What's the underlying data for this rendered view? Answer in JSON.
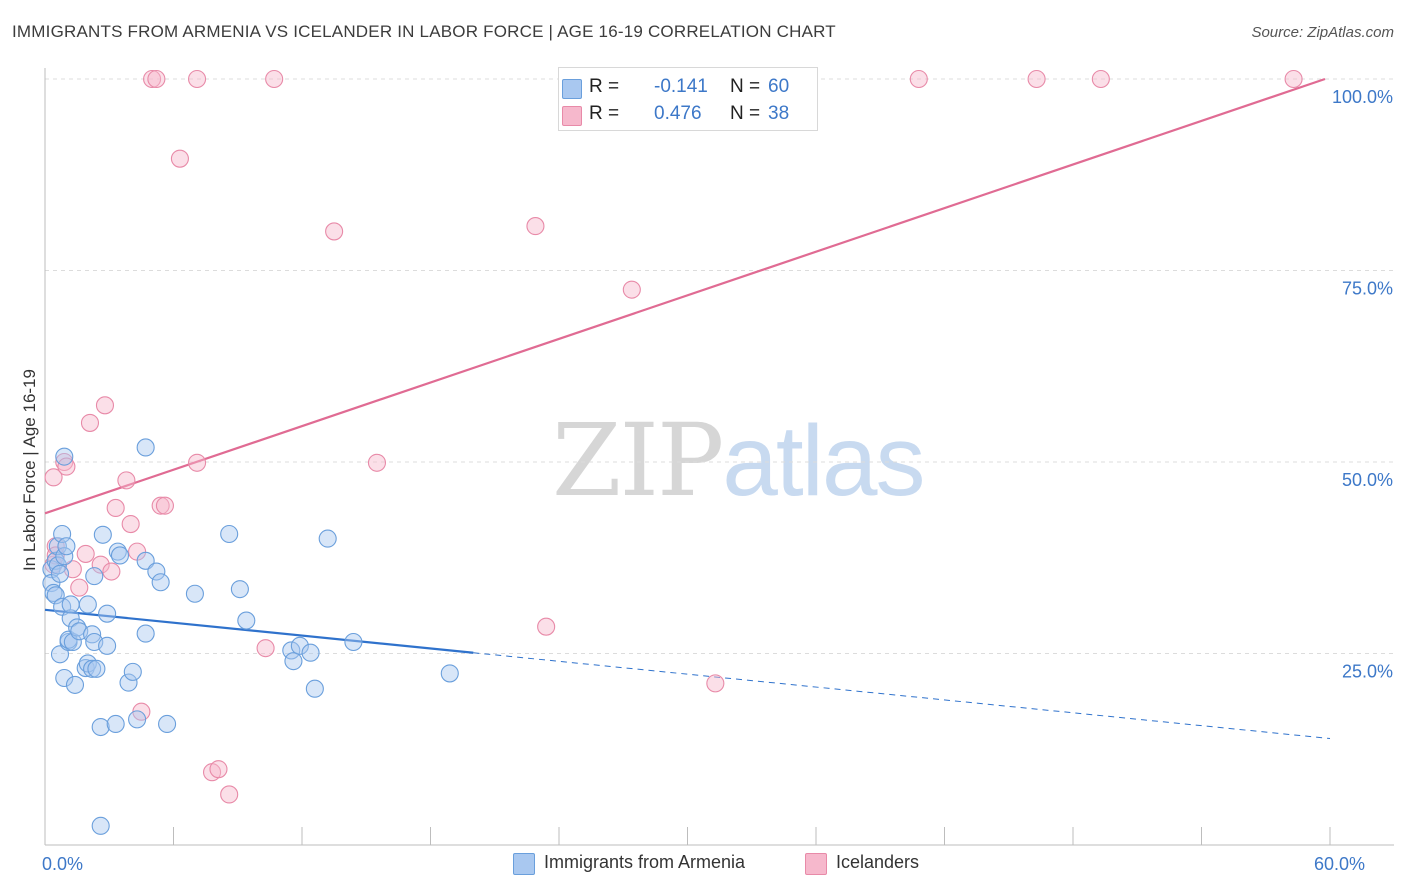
{
  "title": "IMMIGRANTS FROM ARMENIA VS ICELANDER IN LABOR FORCE | AGE 16-19 CORRELATION CHART",
  "source": "Source: ZipAtlas.com",
  "watermark": {
    "zip": "ZIP",
    "atlas": "atlas"
  },
  "colors": {
    "blue_fill": "#a9c8f0",
    "blue_stroke": "#6a9fdc",
    "blue_line": "#2f72cc",
    "pink_fill": "#f6b8cc",
    "pink_stroke": "#e88aa8",
    "pink_line": "#e06b93",
    "tick_text": "#3d78c8",
    "grid": "#dcdcdc"
  },
  "stats": [
    {
      "r_label": "R =",
      "r_value": "-0.141",
      "n_label": "N =",
      "n_value": "60",
      "color": "#a9c8f0",
      "border": "#6a9fdc"
    },
    {
      "r_label": "R =",
      "r_value": "0.476",
      "n_label": "N =",
      "n_value": "38",
      "color": "#f6b8cc",
      "border": "#e88aa8"
    }
  ],
  "legend": [
    {
      "label": "Immigrants from Armenia",
      "color": "#a9c8f0",
      "border": "#6a9fdc"
    },
    {
      "label": "Icelanders",
      "color": "#f6b8cc",
      "border": "#e88aa8"
    }
  ],
  "chart_data": {
    "type": "scatter",
    "title": "IMMIGRANTS FROM ARMENIA VS ICELANDER IN LABOR FORCE | AGE 16-19 CORRELATION CHART",
    "xlabel": "",
    "ylabel": "In Labor Force | Age 16-19",
    "xlim": [
      0,
      60
    ],
    "ylim": [
      0,
      100
    ],
    "x_tick_labels": [
      {
        "value": 0,
        "label": "0.0%"
      },
      {
        "value": 60,
        "label": "60.0%"
      }
    ],
    "y_tick_labels": [
      {
        "value": 25,
        "label": "25.0%"
      },
      {
        "value": 50,
        "label": "50.0%"
      },
      {
        "value": 75,
        "label": "75.0%"
      },
      {
        "value": 100,
        "label": "100.0%"
      }
    ],
    "x_minor_ticks": [
      6,
      12,
      18,
      24,
      30,
      36,
      42,
      48,
      54,
      60
    ],
    "series": [
      {
        "name": "Immigrants from Armenia",
        "r": -0.141,
        "n": 60,
        "trend": {
          "x0": 0,
          "y0": 30.7,
          "x1": 20,
          "y1": 25.1,
          "dash_x1": 60,
          "dash_y1": 13.9
        },
        "points": [
          [
            0.3,
            36.0
          ],
          [
            0.3,
            34.2
          ],
          [
            0.4,
            32.9
          ],
          [
            0.5,
            37.1
          ],
          [
            0.5,
            32.6
          ],
          [
            0.6,
            36.5
          ],
          [
            0.6,
            39.0
          ],
          [
            0.7,
            35.4
          ],
          [
            0.7,
            24.9
          ],
          [
            0.8,
            40.6
          ],
          [
            0.9,
            37.7
          ],
          [
            0.9,
            21.8
          ],
          [
            1.0,
            39.0
          ],
          [
            0.8,
            31.1
          ],
          [
            1.1,
            26.5
          ],
          [
            1.1,
            26.8
          ],
          [
            1.2,
            29.6
          ],
          [
            1.2,
            31.4
          ],
          [
            1.3,
            26.5
          ],
          [
            1.4,
            20.9
          ],
          [
            1.5,
            28.4
          ],
          [
            1.6,
            27.9
          ],
          [
            1.9,
            23.1
          ],
          [
            2.0,
            23.7
          ],
          [
            2.0,
            31.4
          ],
          [
            2.2,
            27.5
          ],
          [
            2.2,
            23.0
          ],
          [
            2.3,
            35.1
          ],
          [
            2.3,
            26.5
          ],
          [
            2.4,
            23.0
          ],
          [
            2.6,
            15.4
          ],
          [
            2.7,
            40.5
          ],
          [
            2.9,
            30.2
          ],
          [
            2.9,
            26.0
          ],
          [
            3.3,
            15.8
          ],
          [
            3.4,
            38.3
          ],
          [
            3.5,
            37.8
          ],
          [
            3.9,
            21.2
          ],
          [
            4.1,
            22.6
          ],
          [
            4.3,
            16.4
          ],
          [
            4.7,
            27.6
          ],
          [
            4.7,
            37.1
          ],
          [
            5.2,
            35.7
          ],
          [
            5.4,
            34.3
          ],
          [
            5.7,
            15.8
          ],
          [
            7.0,
            32.8
          ],
          [
            8.6,
            40.6
          ],
          [
            9.1,
            33.4
          ],
          [
            9.4,
            29.3
          ],
          [
            11.5,
            25.4
          ],
          [
            11.6,
            24.0
          ],
          [
            11.9,
            26.0
          ],
          [
            12.4,
            25.1
          ],
          [
            12.6,
            20.4
          ],
          [
            13.2,
            40.0
          ],
          [
            14.4,
            26.5
          ],
          [
            18.9,
            22.4
          ],
          [
            4.7,
            51.9
          ],
          [
            0.9,
            50.7
          ],
          [
            2.6,
            2.5
          ]
        ]
      },
      {
        "name": "Icelanders",
        "r": 0.476,
        "n": 38,
        "trend": {
          "x0": 0,
          "y0": 43.3,
          "x1": 60,
          "y1": 100.0
        },
        "points": [
          [
            0.4,
            36.6
          ],
          [
            0.4,
            48.0
          ],
          [
            0.5,
            39.0
          ],
          [
            0.5,
            37.8
          ],
          [
            0.9,
            50.0
          ],
          [
            1.0,
            49.4
          ],
          [
            1.3,
            36.0
          ],
          [
            1.6,
            33.6
          ],
          [
            1.9,
            38.0
          ],
          [
            2.1,
            55.1
          ],
          [
            2.6,
            36.6
          ],
          [
            2.8,
            57.4
          ],
          [
            3.1,
            35.7
          ],
          [
            3.3,
            44.0
          ],
          [
            3.8,
            47.6
          ],
          [
            4.0,
            41.9
          ],
          [
            4.3,
            38.3
          ],
          [
            4.5,
            17.4
          ],
          [
            5.0,
            100.0
          ],
          [
            5.2,
            100.0
          ],
          [
            5.4,
            44.3
          ],
          [
            5.6,
            44.3
          ],
          [
            6.3,
            89.6
          ],
          [
            7.1,
            100.0
          ],
          [
            7.1,
            49.9
          ],
          [
            7.8,
            9.5
          ],
          [
            8.1,
            9.9
          ],
          [
            8.6,
            6.6
          ],
          [
            10.3,
            25.7
          ],
          [
            10.7,
            100.0
          ],
          [
            13.5,
            80.1
          ],
          [
            15.5,
            49.9
          ],
          [
            22.9,
            80.8
          ],
          [
            23.4,
            28.5
          ],
          [
            27.4,
            72.5
          ],
          [
            31.3,
            21.1
          ],
          [
            40.8,
            100.0
          ],
          [
            46.3,
            100.0
          ]
        ],
        "extra_points": [
          [
            49.3,
            100.0
          ],
          [
            58.3,
            100.0
          ]
        ]
      }
    ]
  }
}
